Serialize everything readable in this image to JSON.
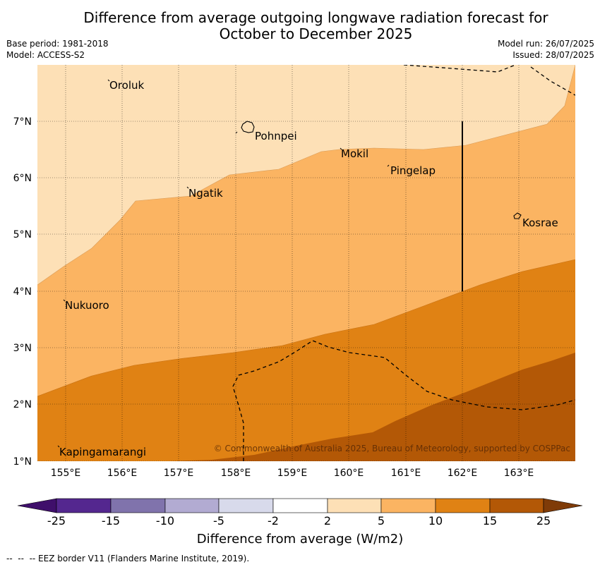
{
  "title": {
    "line1": "Difference from average outgoing longwave radiation forecast for",
    "line2": "October to December 2025"
  },
  "meta": {
    "base_period": "Base period: 1981-2018",
    "model": "Model: ACCESS-S2",
    "model_run": "Model run: 26/07/2025",
    "issued": "Issued: 28/07/2025"
  },
  "axes": {
    "lon_ticks": [
      "155°E",
      "156°E",
      "157°E",
      "158°E",
      "159°E",
      "160°E",
      "161°E",
      "162°E",
      "163°E"
    ],
    "lat_ticks": [
      "1°N",
      "2°N",
      "3°N",
      "4°N",
      "5°N",
      "6°N",
      "7°N"
    ]
  },
  "places": [
    {
      "name": "Oroluk"
    },
    {
      "name": "Pohnpei"
    },
    {
      "name": "Mokil"
    },
    {
      "name": "Pingelap"
    },
    {
      "name": "Ngatik"
    },
    {
      "name": "Kosrae"
    },
    {
      "name": "Nukuoro"
    },
    {
      "name": "Kapingamarangi"
    }
  ],
  "copyright": "© Commonwealth of Australia 2025, Bureau of Meteorology, supported by COSPPac",
  "colorbar": {
    "labels": [
      "-25",
      "-15",
      "-10",
      "-5",
      "-2",
      "2",
      "5",
      "10",
      "15",
      "25"
    ],
    "colors": {
      "lt_-25": "#3f0f6b",
      "-25_-15": "#54278f",
      "-15_-10": "#8073ac",
      "-10_-5": "#b2abd2",
      "-5_-2": "#d8daeb",
      "-2_2": "#ffffff",
      "2_5": "#fde0b6",
      "5_10": "#fbb462",
      "10_15": "#e08214",
      "15_25": "#b35806",
      "gt_25": "#7f3b08"
    },
    "title": "Difference from average (W/m2)"
  },
  "footnote": "--  --  -- EEZ border V11 (Flanders Marine Institute, 2019)."
}
